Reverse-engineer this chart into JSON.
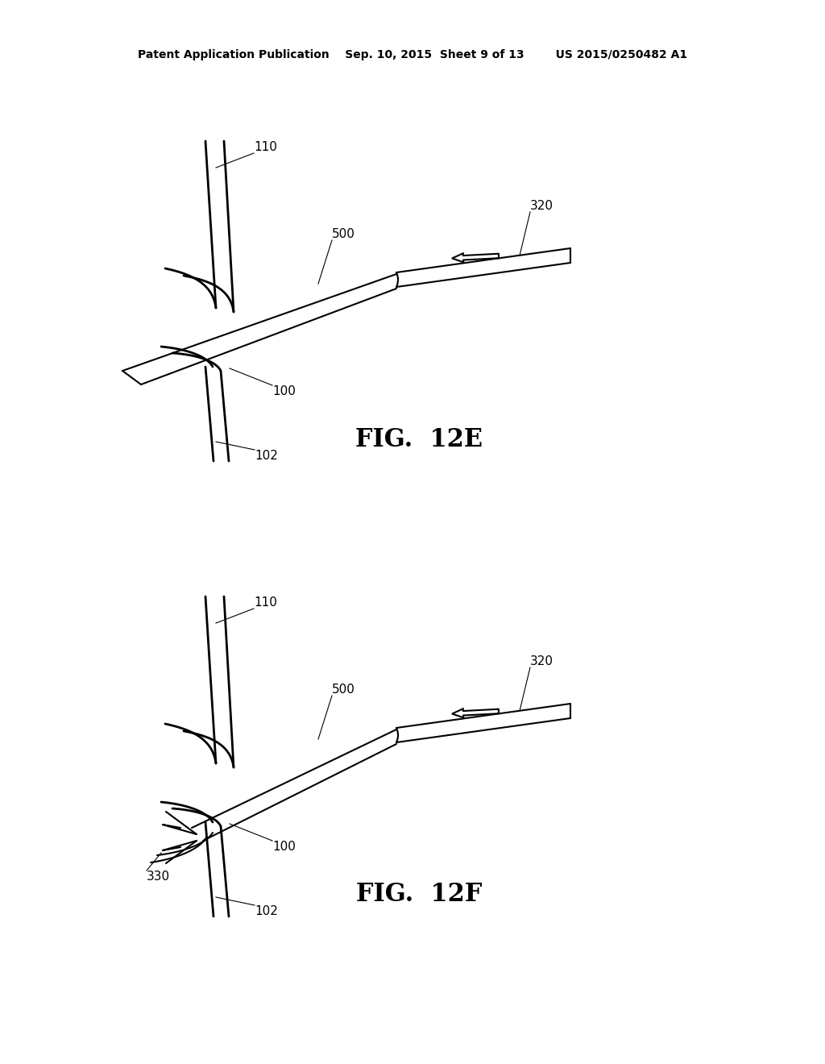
{
  "bg_color": "#ffffff",
  "header_text": "Patent Application Publication    Sep. 10, 2015  Sheet 9 of 13        US 2015/0250482 A1",
  "fig_e_label": "FIG.  12E",
  "fig_f_label": "FIG.  12F",
  "line_color": "#000000",
  "lw": 1.5,
  "lw_wall": 2.0,
  "label_fontsize": 11,
  "fig_label_fontsize": 22,
  "header_fontsize": 10
}
